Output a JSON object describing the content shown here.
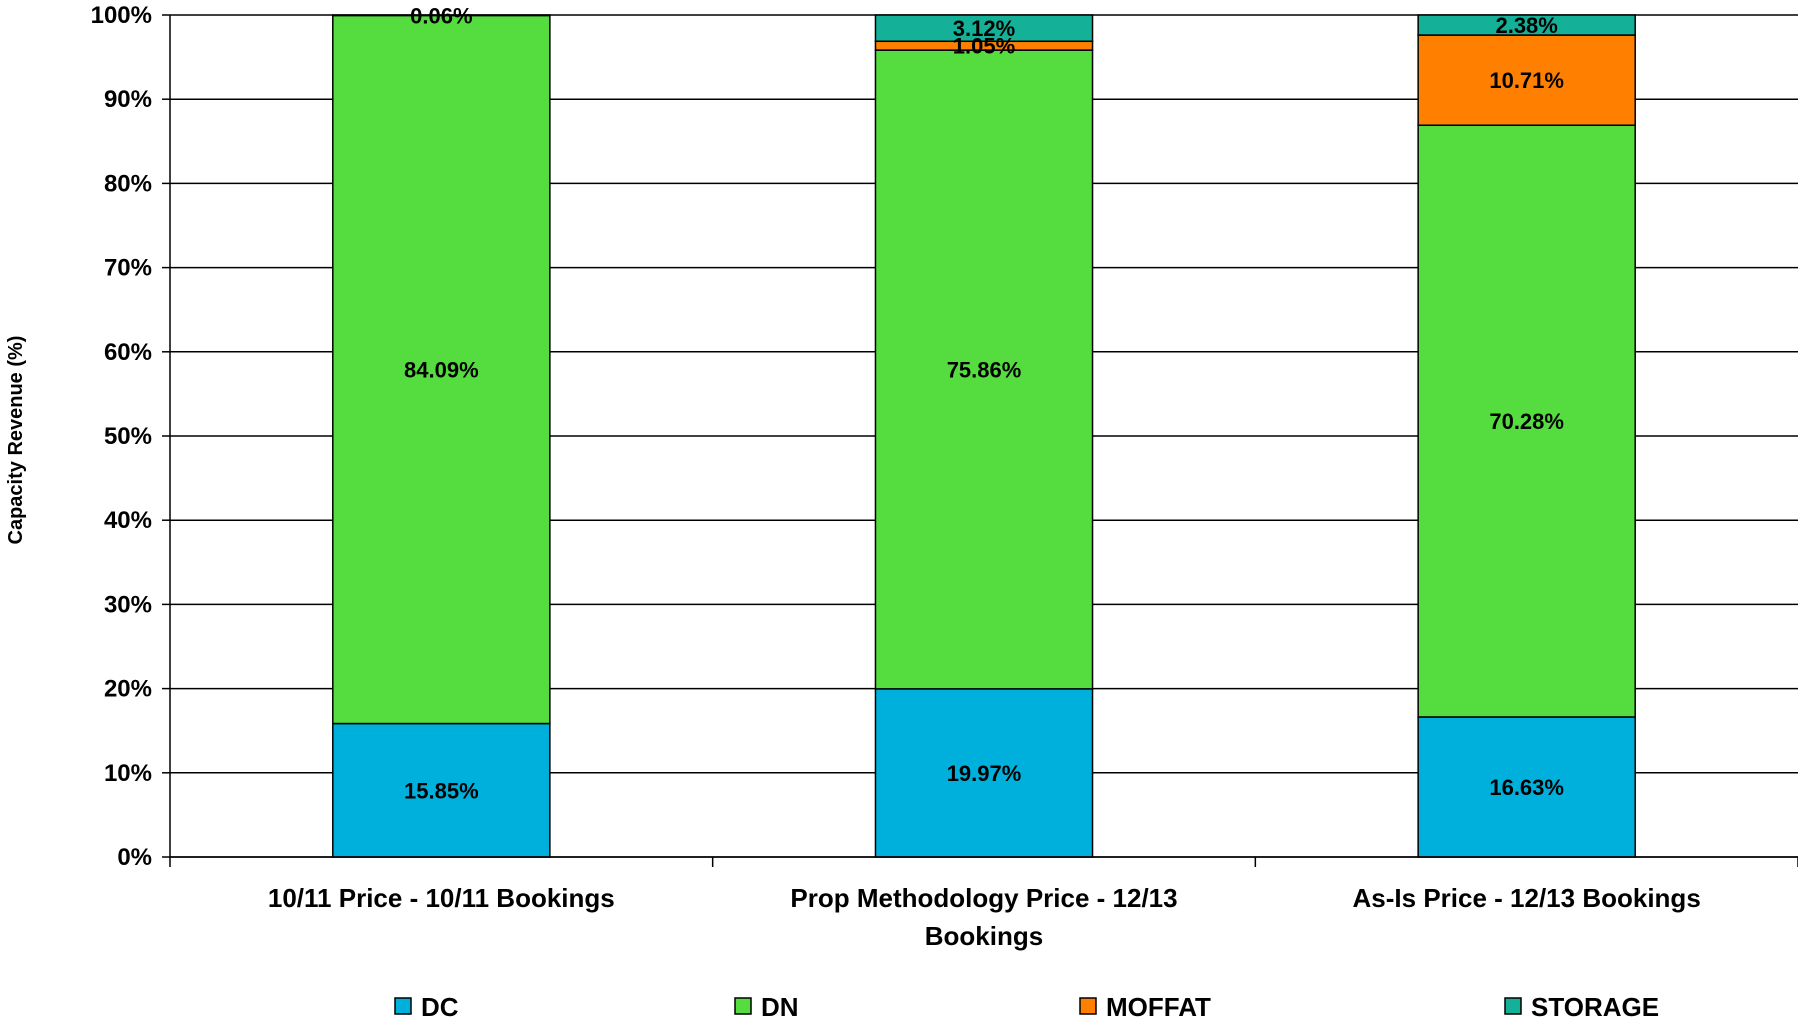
{
  "chart_data": {
    "type": "bar",
    "stacked": true,
    "percent_stacked": true,
    "title": "",
    "xlabel": "",
    "ylabel": "Capacity Revenue (%)",
    "ylim": [
      0,
      100
    ],
    "yticks": [
      "0%",
      "10%",
      "20%",
      "30%",
      "40%",
      "50%",
      "60%",
      "70%",
      "80%",
      "90%",
      "100%"
    ],
    "grid": true,
    "legend_position": "bottom",
    "categories": [
      [
        "10/11 Price - 10/11 Bookings"
      ],
      [
        "Prop Methodology Price - 12/13",
        "Bookings"
      ],
      [
        "As-Is Price - 12/13 Bookings"
      ]
    ],
    "series": [
      {
        "name": "DC",
        "color": "#00b0dc",
        "values": [
          15.85,
          19.97,
          16.63
        ],
        "labels": [
          "15.85%",
          "19.97%",
          "16.63%"
        ]
      },
      {
        "name": "DN",
        "color": "#55dd3f",
        "values": [
          84.09,
          75.86,
          70.28
        ],
        "labels": [
          "84.09%",
          "75.86%",
          "70.28%"
        ]
      },
      {
        "name": "MOFFAT",
        "color": "#ff7f00",
        "values": [
          0.0,
          1.05,
          10.71
        ],
        "labels": [
          "",
          "1.05%",
          "10.71%"
        ]
      },
      {
        "name": "STORAGE",
        "color": "#14b098",
        "values": [
          0.06,
          3.12,
          2.38
        ],
        "labels": [
          "0.06%",
          "3.12%",
          "2.38%"
        ]
      }
    ]
  }
}
